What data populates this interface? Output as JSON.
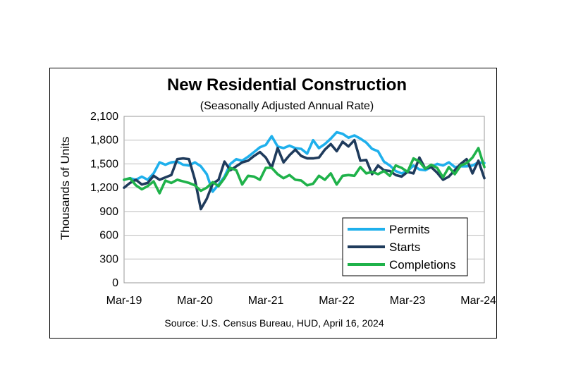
{
  "chart_data": {
    "type": "line",
    "title": "New Residential Construction",
    "subtitle": "(Seasonally Adjusted Annual Rate)",
    "ylabel": "Thousands of Units",
    "xlabel": "",
    "ylim": [
      0,
      2100
    ],
    "yticks": [
      "0",
      "300",
      "600",
      "900",
      "1,200",
      "1,500",
      "1,800",
      "2,100"
    ],
    "ytick_values": [
      0,
      300,
      600,
      900,
      1200,
      1500,
      1800,
      2100
    ],
    "xticks": [
      "Mar-19",
      "Mar-20",
      "Mar-21",
      "Mar-22",
      "Mar-23",
      "Mar-24"
    ],
    "xtick_index": [
      0,
      12,
      24,
      36,
      48,
      60
    ],
    "grid": "horizontal",
    "legend_position": "bottom-right",
    "source": "Source:  U.S. Census Bureau, HUD, April 16, 2024",
    "series": [
      {
        "name": "Permits",
        "color": "#1FB0EC",
        "values": [
          1300,
          1320,
          1300,
          1340,
          1300,
          1380,
          1520,
          1490,
          1520,
          1530,
          1490,
          1480,
          1520,
          1470,
          1370,
          1150,
          1240,
          1340,
          1500,
          1560,
          1540,
          1590,
          1650,
          1710,
          1740,
          1850,
          1720,
          1700,
          1730,
          1700,
          1690,
          1630,
          1800,
          1700,
          1750,
          1820,
          1900,
          1880,
          1830,
          1860,
          1820,
          1770,
          1690,
          1660,
          1530,
          1480,
          1410,
          1380,
          1410,
          1480,
          1430,
          1420,
          1460,
          1500,
          1480,
          1520,
          1460,
          1470,
          1470,
          1480,
          1520,
          1510
        ]
      },
      {
        "name": "Starts",
        "color": "#1F3B5C",
        "values": [
          1200,
          1260,
          1300,
          1240,
          1260,
          1350,
          1300,
          1330,
          1360,
          1560,
          1570,
          1560,
          1300,
          930,
          1060,
          1250,
          1300,
          1530,
          1420,
          1470,
          1520,
          1540,
          1600,
          1650,
          1580,
          1450,
          1700,
          1520,
          1610,
          1680,
          1600,
          1570,
          1570,
          1580,
          1680,
          1750,
          1660,
          1780,
          1720,
          1800,
          1540,
          1550,
          1370,
          1480,
          1420,
          1410,
          1360,
          1340,
          1400,
          1380,
          1580,
          1440,
          1460,
          1390,
          1300,
          1340,
          1420,
          1500,
          1560,
          1380,
          1540,
          1320
        ]
      },
      {
        "name": "Completions",
        "color": "#1FB24A",
        "values": [
          1300,
          1320,
          1230,
          1180,
          1220,
          1280,
          1130,
          1290,
          1260,
          1300,
          1280,
          1260,
          1230,
          1160,
          1200,
          1270,
          1220,
          1320,
          1450,
          1420,
          1240,
          1350,
          1340,
          1300,
          1450,
          1450,
          1370,
          1320,
          1360,
          1300,
          1290,
          1230,
          1250,
          1350,
          1300,
          1380,
          1240,
          1350,
          1360,
          1350,
          1460,
          1380,
          1400,
          1370,
          1410,
          1350,
          1480,
          1450,
          1400,
          1570,
          1530,
          1440,
          1490,
          1450,
          1330,
          1460,
          1370,
          1480,
          1510,
          1580,
          1700,
          1460
        ]
      }
    ]
  }
}
